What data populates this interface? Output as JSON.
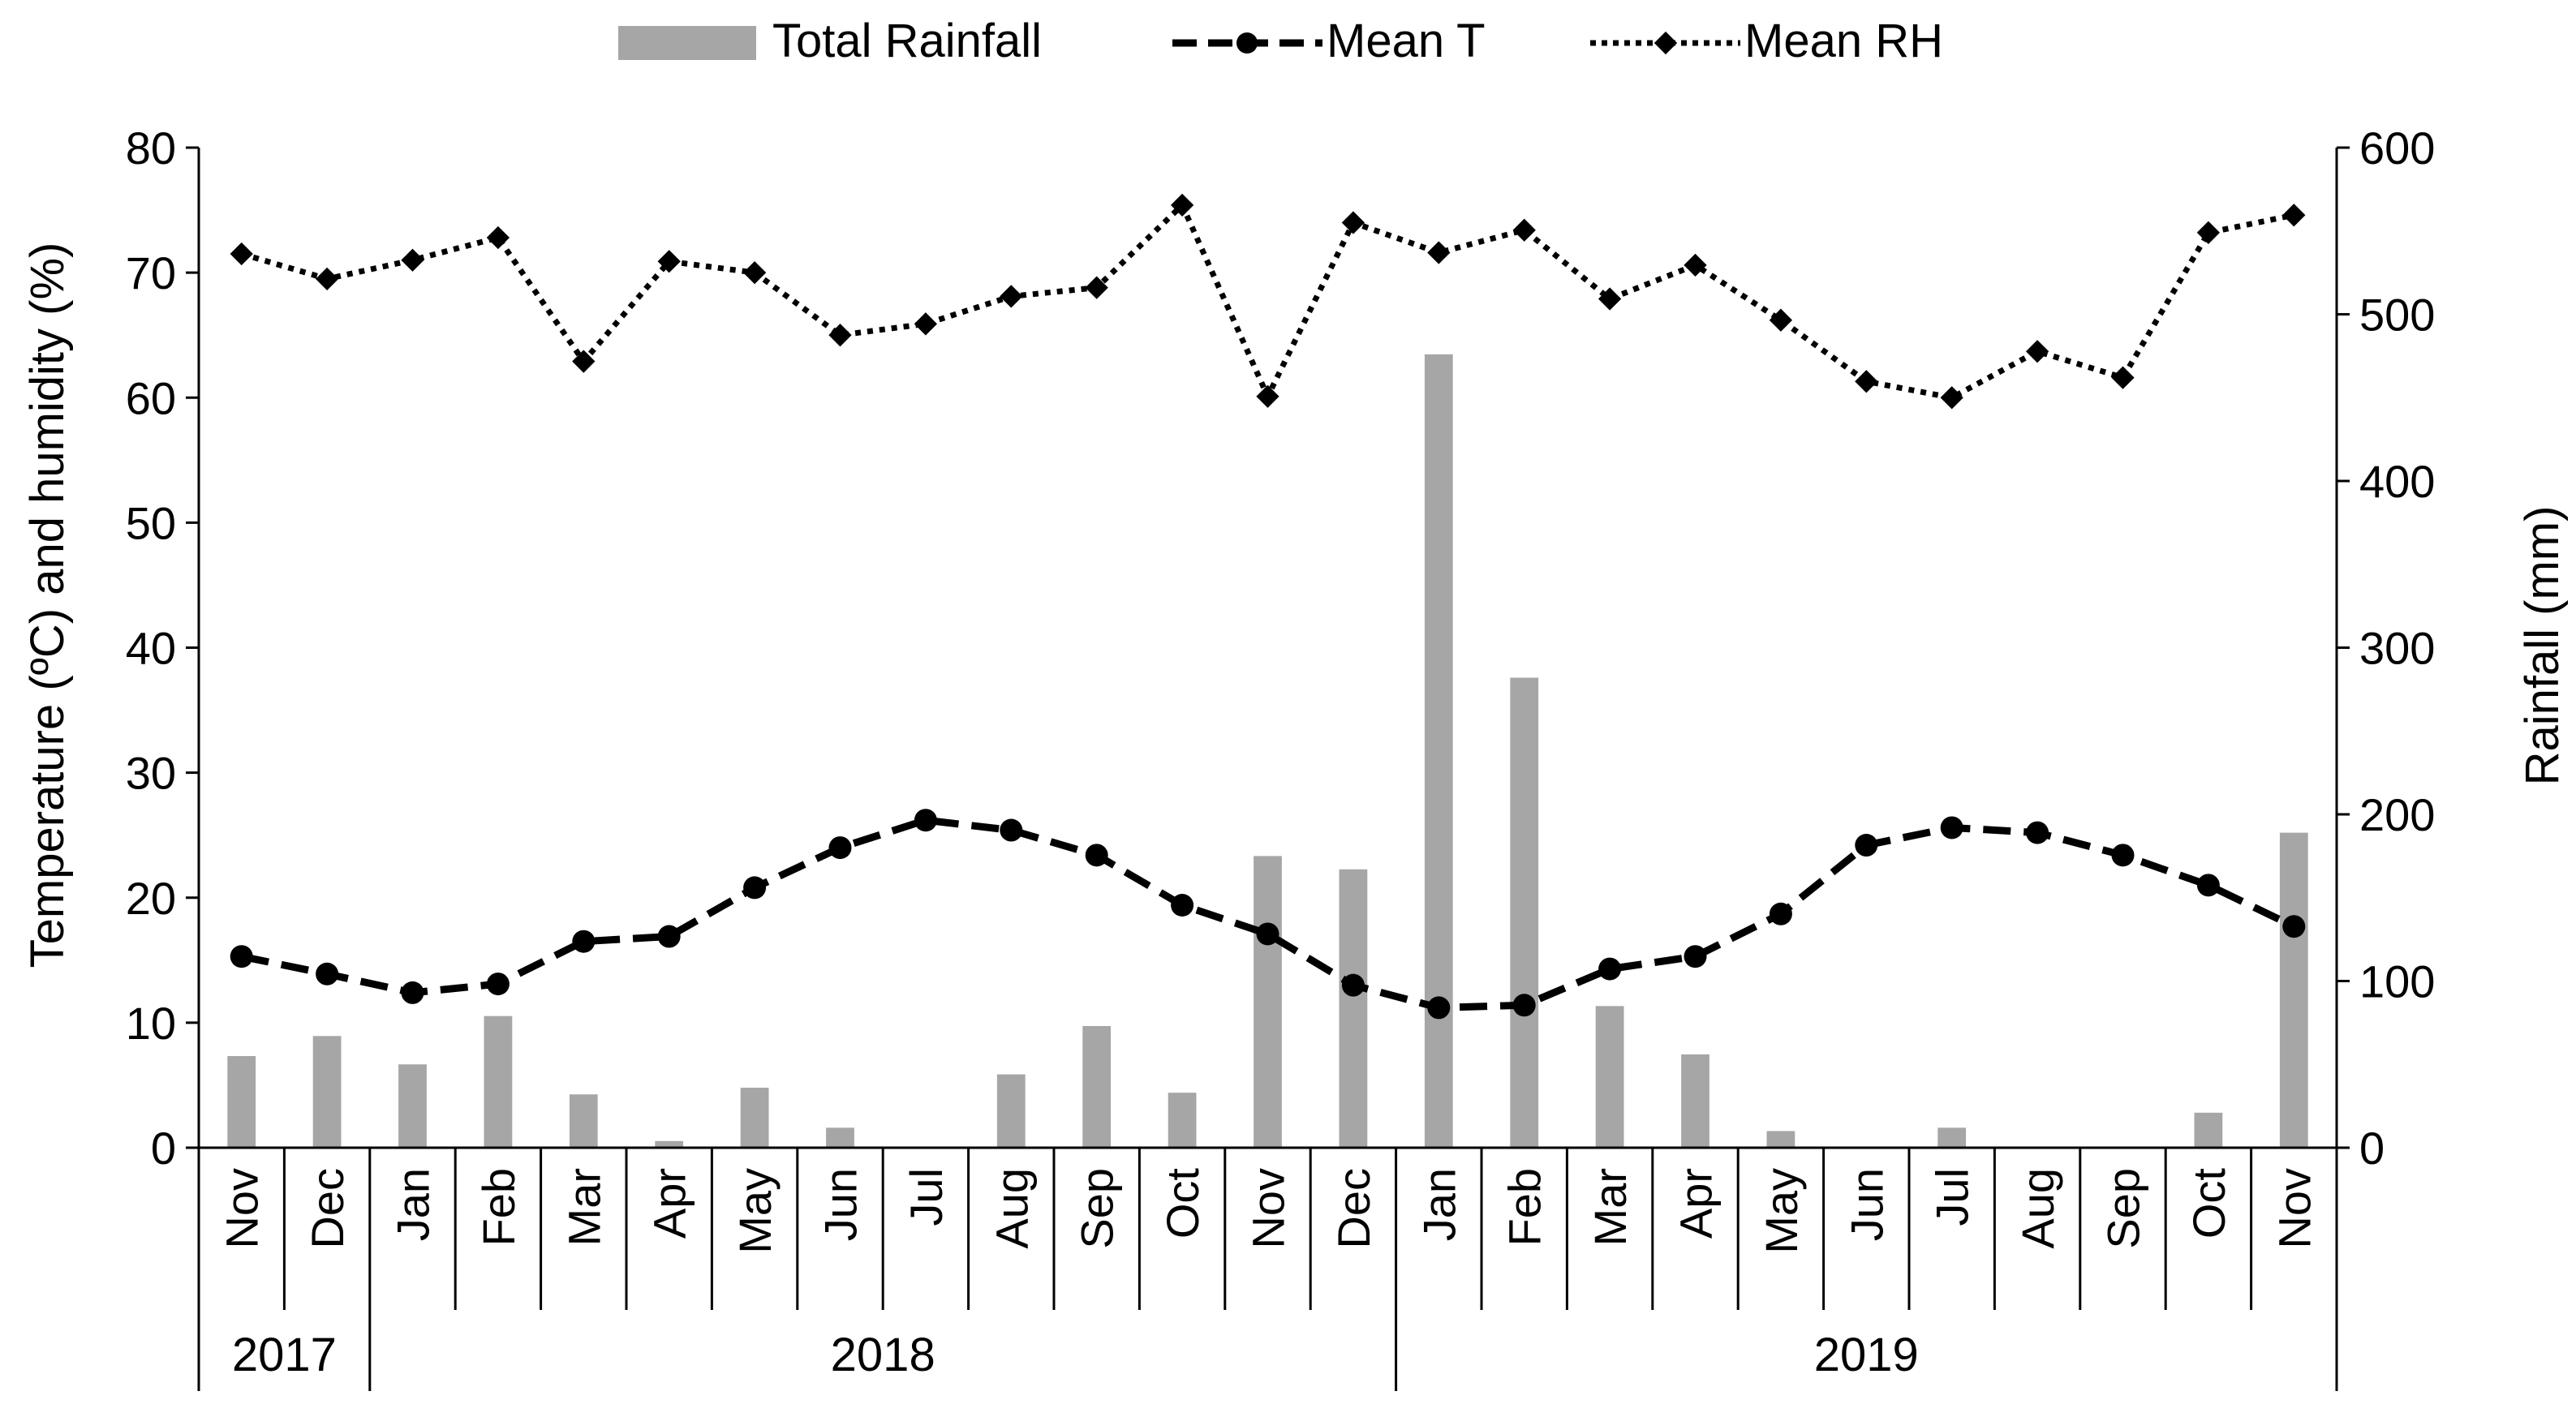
{
  "chart_data": {
    "type": "bar+line",
    "title": "",
    "categories": [
      "Nov",
      "Dec",
      "Jan",
      "Feb",
      "Mar",
      "Apr",
      "May",
      "Jun",
      "Jul",
      "Aug",
      "Sep",
      "Oct",
      "Nov",
      "Dec",
      "Jan",
      "Feb",
      "Mar",
      "Apr",
      "May",
      "Jun",
      "Jul",
      "Aug",
      "Sep",
      "Oct",
      "Nov"
    ],
    "year_groups": [
      {
        "label": "2017",
        "count": 2
      },
      {
        "label": "2018",
        "count": 12
      },
      {
        "label": "2019",
        "count": 11
      }
    ],
    "y_left": {
      "label": "Temperature (ºC) and humidity (%)",
      "min": 0,
      "max": 80,
      "step": 10,
      "ticks": [
        "0",
        "10",
        "20",
        "30",
        "40",
        "50",
        "60",
        "70",
        "80"
      ]
    },
    "y_right": {
      "label": "Rainfall (mm)",
      "min": 0,
      "max": 600,
      "step": 100,
      "ticks": [
        "0",
        "100",
        "200",
        "300",
        "400",
        "500",
        "600"
      ]
    },
    "legend": {
      "position": "top",
      "items": [
        "Total Rainfall",
        "Mean T",
        "Mean RH"
      ]
    },
    "grid": false,
    "series": [
      {
        "name": "Total Rainfall",
        "type": "bar",
        "axis": "right",
        "color": "#a6a6a6",
        "values": [
          55,
          67,
          50,
          79,
          32,
          4,
          36,
          12,
          0,
          44,
          73,
          33,
          175,
          167,
          476,
          282,
          85,
          56,
          10,
          0,
          12,
          0,
          0,
          21,
          189
        ]
      },
      {
        "name": "Mean T",
        "type": "line",
        "axis": "left",
        "color": "#000000",
        "style": "dashed",
        "marker": "circle",
        "values": [
          15.3,
          13.9,
          12.4,
          13.1,
          16.5,
          16.9,
          20.8,
          24.0,
          26.2,
          25.4,
          23.4,
          19.4,
          17.1,
          13.0,
          11.2,
          11.4,
          14.3,
          15.3,
          18.7,
          24.2,
          25.6,
          25.2,
          23.4,
          21.0,
          17.7
        ]
      },
      {
        "name": "Mean RH",
        "type": "line",
        "axis": "left",
        "color": "#000000",
        "style": "dotted",
        "marker": "diamond",
        "values": [
          71.5,
          69.5,
          71.0,
          72.8,
          62.9,
          70.9,
          70.0,
          65.0,
          65.9,
          68.1,
          68.8,
          75.4,
          60.1,
          74.0,
          71.6,
          73.4,
          67.9,
          70.6,
          66.2,
          61.3,
          60.0,
          63.7,
          61.6,
          73.2,
          74.6
        ]
      }
    ]
  }
}
